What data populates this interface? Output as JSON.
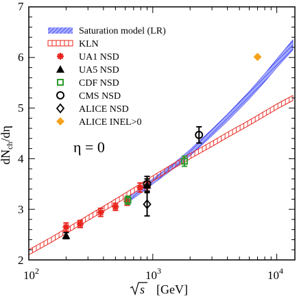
{
  "chart_data": {
    "type": "scatter",
    "x_scale": "log",
    "xlim": [
      100,
      14000
    ],
    "ylim": [
      2,
      7
    ],
    "xlabel_radical": "s",
    "xlabel_unit": "[GeV]",
    "ylabel": "dN",
    "ylabel_sub": "ch",
    "ylabel_tail": "/dη",
    "x_tick_labels": [
      {
        "base": "10",
        "exp": "2",
        "value": 100
      },
      {
        "base": "10",
        "exp": "3",
        "value": 1000
      },
      {
        "base": "10",
        "exp": "4",
        "value": 10000
      }
    ],
    "y_ticks": [
      2,
      3,
      4,
      5,
      6,
      7
    ],
    "annotation": "η = 0",
    "bands": [
      {
        "name": "Saturation model (LR)",
        "color": "#3b3bf0",
        "fill": "#9fa8ff",
        "pattern": "hatch",
        "x": [
          600,
          800,
          1000,
          1500,
          2000,
          3000,
          4000,
          6000,
          8000,
          10000,
          13500
        ],
        "y_low": [
          3.1,
          3.32,
          3.5,
          3.82,
          4.06,
          4.45,
          4.74,
          5.18,
          5.52,
          5.8,
          6.15
        ],
        "y_high": [
          3.2,
          3.42,
          3.6,
          3.92,
          4.18,
          4.58,
          4.88,
          5.33,
          5.68,
          5.97,
          6.35
        ]
      },
      {
        "name": "KLN",
        "color": "#e8241c",
        "pattern": "ladder",
        "x": [
          100,
          150,
          200,
          300,
          400,
          600,
          800,
          1000,
          1500,
          2000,
          3000,
          4000,
          6000,
          8000,
          10000,
          13500
        ],
        "y_low": [
          2.1,
          2.34,
          2.52,
          2.78,
          2.96,
          3.22,
          3.41,
          3.56,
          3.82,
          4.0,
          4.24,
          4.42,
          4.66,
          4.84,
          4.98,
          5.15
        ],
        "y_high": [
          2.2,
          2.44,
          2.62,
          2.88,
          3.06,
          3.32,
          3.51,
          3.66,
          3.92,
          4.1,
          4.34,
          4.52,
          4.76,
          4.94,
          5.08,
          5.25
        ]
      }
    ],
    "series": [
      {
        "name": "UA1 NSD",
        "marker": "star",
        "color": "#e8241c",
        "points": [
          {
            "x": 200,
            "y": 2.65,
            "err": 0.08
          },
          {
            "x": 260,
            "y": 2.71,
            "err": 0.07
          },
          {
            "x": 380,
            "y": 2.94,
            "err": 0.08
          },
          {
            "x": 500,
            "y": 3.05,
            "err": 0.07
          },
          {
            "x": 620,
            "y": 3.16,
            "err": 0.08
          },
          {
            "x": 790,
            "y": 3.43,
            "err": 0.09
          },
          {
            "x": 900,
            "y": 3.45,
            "err": 0.09
          }
        ]
      },
      {
        "name": "UA5 NSD",
        "marker": "triangle",
        "color": "#000000",
        "points": [
          {
            "x": 200,
            "y": 2.48,
            "err": 0.06
          },
          {
            "x": 900,
            "y": 3.48,
            "err": 0.12
          }
        ]
      },
      {
        "name": "CDF NSD",
        "marker": "square-open",
        "color": "#2c9a2c",
        "points": [
          {
            "x": 630,
            "y": 3.18,
            "err": 0.08
          },
          {
            "x": 1800,
            "y": 3.95,
            "err": 0.1
          }
        ]
      },
      {
        "name": "CMS NSD",
        "marker": "circle-open",
        "color": "#000000",
        "points": [
          {
            "x": 900,
            "y": 3.5,
            "err": 0.15
          },
          {
            "x": 2360,
            "y": 4.47,
            "err": 0.16
          }
        ]
      },
      {
        "name": "ALICE NSD",
        "marker": "diamond-open",
        "color": "#000000",
        "points": [
          {
            "x": 900,
            "y": 3.1,
            "err": 0.23
          }
        ]
      },
      {
        "name": "ALICE INEL>0",
        "marker": "diamond-filled",
        "color": "#f5a21b",
        "points": [
          {
            "x": 7000,
            "y": 6.01,
            "err": 0.0
          }
        ]
      }
    ]
  }
}
